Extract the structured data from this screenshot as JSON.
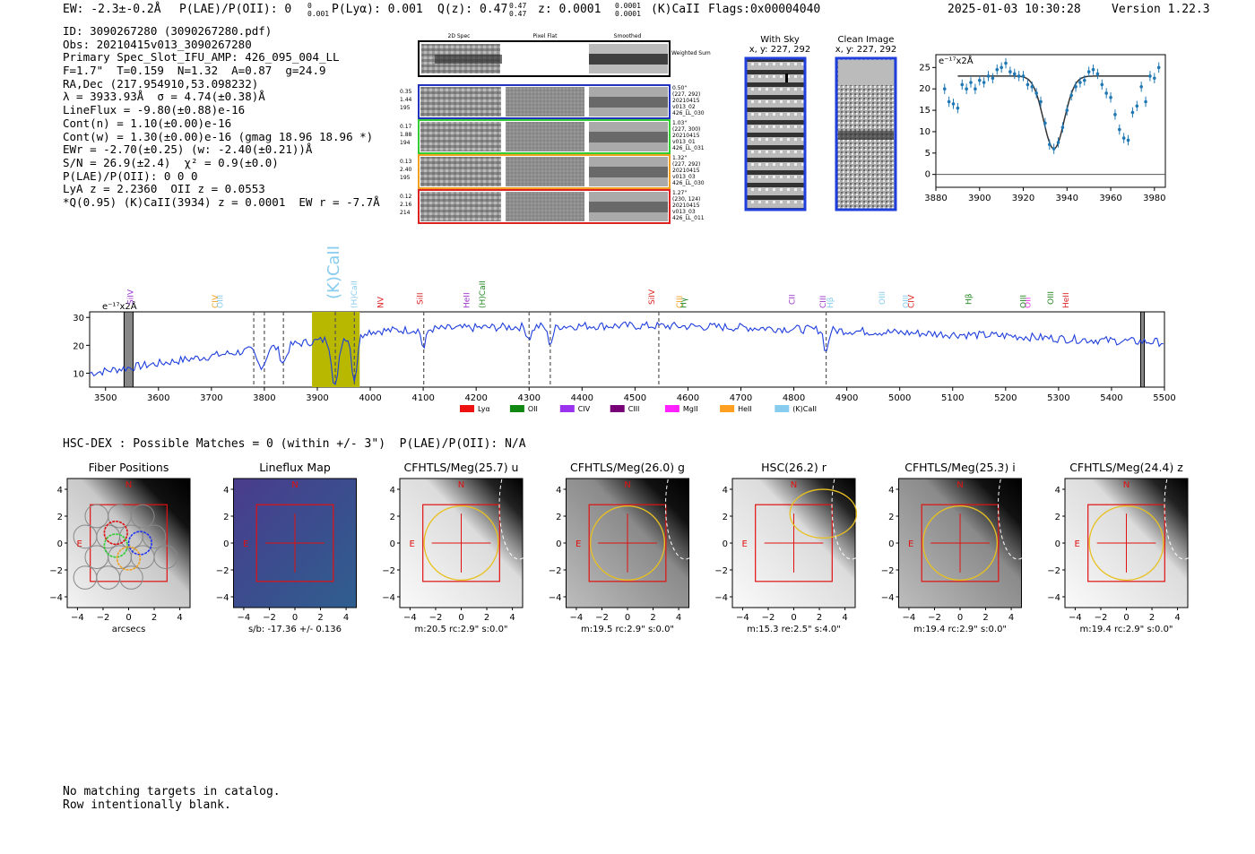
{
  "header": {
    "left": "EW: -2.3±-0.2Å  P(LAE)/P(OII): 0 0.001  P(Lyα): 0.001  Q(z): 0.47 0.47  z: 0.0001 0.0001  (K)CaII  Flags:0x00004040",
    "ew": "EW: -2.3±-0.2Å",
    "plae": "P(LAE)/P(OII): 0",
    "plae_sup": "0",
    "plae_sub": "0.001",
    "plya": "P(Lyα): 0.001",
    "qz": "Q(z): 0.47",
    "qz_sup": "0.47",
    "qz_sub": "0.47",
    "z": "z: 0.0001",
    "z_sup": "0.0001",
    "z_sub": "0.0001",
    "line": "(K)CaII",
    "flags": "Flags:0x00004040",
    "timestamp": "2025-01-03 10:30:28",
    "version": "Version 1.22.3"
  },
  "info": [
    "ID: 3090267280 (3090267280.pdf)",
    "Obs: 20210415v013_3090267280",
    "Primary Spec_Slot_IFU_AMP: 426_095_004_LL",
    "F=1.7\"  T=0.159  N=1.32  A=0.87  g=24.9",
    "RA,Dec (217.954910,53.098232)",
    "λ = 3933.93Å  σ = 4.74(±0.38)Å",
    "LineFlux = -9.80(±0.88)e-16",
    "Cont(n) = 1.10(±0.00)e-16",
    "Cont(w) = 1.30(±0.00)e-16 (gmag 18.96 18.96 *)",
    "EWr = -2.70(±0.25) (w: -2.40(±0.21))Å",
    "S/N = 26.9(±2.4)  χ² = 0.9(±0.0)",
    "P(LAE)/P(OII): 0 0 0",
    "LyA z = 2.2360  OII z = 0.0553",
    "*Q(0.95) (K)CaII(3934) z = 0.0001  EW r = -7.7Å"
  ],
  "cutouts": {
    "col_titles": [
      "2D Spec",
      "Pixel Flat",
      "Smoothed"
    ],
    "sum_label": "Weighted Sum",
    "rows": [
      {
        "left": [
          "0.35",
          "1.44",
          "195"
        ],
        "right": [
          "0.50\"",
          "(227, 292)",
          "20210415",
          "v013_02",
          "426_LL_030"
        ],
        "color": "#2233bb"
      },
      {
        "left": [
          "0.17",
          "1.88",
          "194"
        ],
        "right": [
          "1.03\"",
          "(227, 300)",
          "20210415",
          "v013_01",
          "426_LL_031"
        ],
        "color": "#33cc33"
      },
      {
        "left": [
          "0.13",
          "2.40",
          "195"
        ],
        "right": [
          "1.32\"",
          "(227, 292)",
          "20210415",
          "v013_03",
          "426_LL_030"
        ],
        "color": "#f0a020"
      },
      {
        "left": [
          "0.12",
          "2.16",
          "214"
        ],
        "right": [
          "1.27\"",
          "(230, 124)",
          "20210415",
          "v013_03",
          "426_LL_011"
        ],
        "color": "#dd2222"
      }
    ]
  },
  "sky_panels": {
    "with_sky": "With Sky",
    "with_sky_xy": "x, y: 227, 292",
    "clean": "Clean Image",
    "clean_xy": "x, y: 227, 292"
  },
  "colors": {
    "blue": "#1f3fdd",
    "olive": "#b8b800",
    "point": "#1f77b4"
  },
  "chart_data": [
    {
      "type": "scatter",
      "name": "line fit zoom",
      "ylabel": "e⁻¹⁷x2Å",
      "xlim": [
        3880,
        3985
      ],
      "ylim": [
        -3,
        28
      ],
      "xticks": [
        3880,
        3900,
        3920,
        3940,
        3960,
        3980
      ],
      "yticks": [
        0,
        5,
        10,
        15,
        20,
        25
      ],
      "x": [
        3884,
        3886,
        3888,
        3890,
        3892,
        3894,
        3896,
        3898,
        3900,
        3902,
        3904,
        3906,
        3908,
        3910,
        3912,
        3914,
        3916,
        3918,
        3920,
        3922,
        3924,
        3926,
        3928,
        3930,
        3932,
        3934,
        3936,
        3938,
        3940,
        3942,
        3944,
        3946,
        3948,
        3950,
        3952,
        3954,
        3956,
        3958,
        3960,
        3962,
        3964,
        3966,
        3968,
        3970,
        3972,
        3974,
        3976,
        3978,
        3980,
        3982
      ],
      "y": [
        20,
        17,
        16.5,
        15.5,
        21,
        20,
        21.5,
        20,
        22,
        21.5,
        23,
        22.5,
        24.5,
        25,
        26,
        24,
        23.5,
        23,
        23,
        21,
        20.5,
        19,
        17,
        12,
        7,
        6,
        7.5,
        11,
        15,
        18.5,
        20.5,
        21.5,
        22,
        24,
        24.5,
        23.5,
        21,
        19,
        18,
        14,
        10.5,
        8.5,
        8,
        14.5,
        16,
        20.5,
        17,
        23,
        22.5,
        25
      ],
      "fit": {
        "continuum": 23,
        "center": 3934,
        "depth": 17,
        "sigma": 4.74
      }
    },
    {
      "type": "line",
      "name": "full spectrum",
      "ylabel": "e⁻¹⁷x2Å",
      "xlim": [
        3470,
        5500
      ],
      "ylim": [
        5,
        32
      ],
      "xticks": [
        3500,
        3600,
        3700,
        3800,
        3900,
        4000,
        4100,
        4200,
        4300,
        4400,
        4500,
        4600,
        4700,
        4800,
        4900,
        5000,
        5100,
        5200,
        5300,
        5400,
        5500
      ],
      "yticks": [
        10,
        20,
        30
      ],
      "highlight": [
        3890,
        3980
      ],
      "dashed_lines": [
        3780,
        3800,
        3836,
        3934,
        3970,
        4101,
        4300,
        4340,
        4545,
        4861
      ],
      "masked": [
        [
          3535,
          3552
        ],
        [
          5455,
          5462
        ]
      ],
      "line_labels": [
        {
          "label": "SiIV",
          "x": 3545,
          "color": "#9933cc"
        },
        {
          "label": "CIV",
          "x": 3705,
          "color": "#f0a020"
        },
        {
          "label": "OIII",
          "x": 3715,
          "color": "#88ccee"
        },
        {
          "label": "(K)CaII",
          "x": 3934,
          "color": "#88ccee"
        },
        {
          "label": "(H)CaII",
          "x": 3968,
          "color": "#88ccee"
        },
        {
          "label": "NV",
          "x": 4018,
          "color": "#dd2222"
        },
        {
          "label": "SiII",
          "x": 4092,
          "color": "#dd2222"
        },
        {
          "label": "HeII",
          "x": 4180,
          "color": "#9933cc"
        },
        {
          "label": "(H)CaII",
          "x": 4210,
          "color": "#228822"
        },
        {
          "label": "SiIV",
          "x": 4530,
          "color": "#dd2222"
        },
        {
          "label": "CIII",
          "x": 4582,
          "color": "#f0a020"
        },
        {
          "label": "Hγ",
          "x": 4590,
          "color": "#228822"
        },
        {
          "label": "CII",
          "x": 4795,
          "color": "#9933cc"
        },
        {
          "label": "CIII",
          "x": 4853,
          "color": "#9933cc"
        },
        {
          "label": "Hβ",
          "x": 4867,
          "color": "#88ccee"
        },
        {
          "label": "OIII",
          "x": 4965,
          "color": "#88ccee"
        },
        {
          "label": "OIII",
          "x": 5010,
          "color": "#88ccee"
        },
        {
          "label": "CIV",
          "x": 5020,
          "color": "#dd2222"
        },
        {
          "label": "Hβ",
          "x": 5128,
          "color": "#228822"
        },
        {
          "label": "OII",
          "x": 5240,
          "color": "#ee33ee"
        },
        {
          "label": "OIII",
          "x": 5232,
          "color": "#228822"
        },
        {
          "label": "OIII",
          "x": 5283,
          "color": "#228822"
        },
        {
          "label": "HeII",
          "x": 5312,
          "color": "#dd2222"
        }
      ],
      "legend": [
        {
          "label": "Lyα",
          "color": "#ee1111"
        },
        {
          "label": "OII",
          "color": "#118811"
        },
        {
          "label": "CIV",
          "color": "#9933ee"
        },
        {
          "label": "CIII",
          "color": "#770077"
        },
        {
          "label": "MgII",
          "color": "#ff22ff"
        },
        {
          "label": "HeII",
          "color": "#ffa020"
        },
        {
          "label": "(K)CaII",
          "color": "#88ccee"
        }
      ]
    }
  ],
  "hsc": {
    "title": "HSC-DEX : Possible Matches = 0 (within +/- 3\")  P(LAE)/P(OII): N/A"
  },
  "imaging": [
    {
      "title": "Fiber Positions",
      "caption": "arcsecs",
      "bg": "dark-top-right"
    },
    {
      "title": "Lineflux Map",
      "caption": "s/b: -17.36 +/- 0.136",
      "bg": "purple"
    },
    {
      "title": "CFHTLS/Meg(25.7) u",
      "caption": "m:20.5 rc:2.9\"  s:0.0\"",
      "bg": "light"
    },
    {
      "title": "CFHTLS/Meg(26.0) g",
      "caption": "m:19.5 rc:2.9\"  s:0.0\"",
      "bg": "mid"
    },
    {
      "title": "HSC(26.2) r",
      "caption": "m:15.3  re:2.5\"  s:4.0\"",
      "bg": "light"
    },
    {
      "title": "CFHTLS/Meg(25.3) i",
      "caption": "m:19.4 rc:2.9\"  s:0.0\"",
      "bg": "mid"
    },
    {
      "title": "CFHTLS/Meg(24.4) z",
      "caption": "m:19.4 rc:2.9\"  s:0.0\"",
      "bg": "light"
    }
  ],
  "image_axes": {
    "ticks": [
      "−4",
      "−2",
      "0",
      "2",
      "4"
    ],
    "north": "N",
    "east": "E"
  },
  "footer": {
    "line1": "No matching targets in catalog.",
    "line2": "Row intentionally blank."
  }
}
